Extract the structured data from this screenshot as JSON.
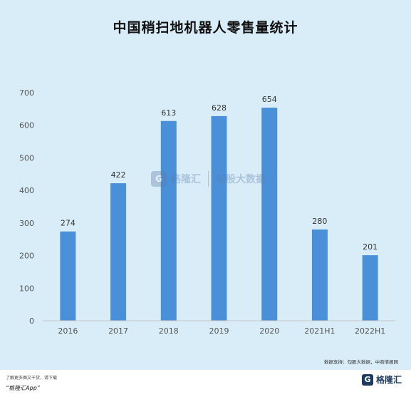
{
  "chart_data": {
    "type": "bar",
    "title": "中国稍扫地机器人零售量统计",
    "categories": [
      "2016",
      "2017",
      "2018",
      "2019",
      "2020",
      "2021H1",
      "2022H1"
    ],
    "values": [
      274,
      422,
      613,
      628,
      654,
      280,
      201
    ],
    "ylim": [
      0,
      700
    ],
    "yticks": [
      0,
      100,
      200,
      300,
      400,
      500,
      600,
      700
    ],
    "xlabel": "",
    "ylabel": "",
    "grid": false,
    "bar_color": "#4a90d9"
  },
  "source": "数据支持：勾股大数据，中商情报网",
  "watermark": {
    "logo_glyph": "G",
    "brand": "格隆汇",
    "partner": "勾股大数据"
  },
  "footer": {
    "line1": "了解更多图文干货，请下载",
    "app": "“格隆汇App”",
    "logo_glyph": "G",
    "logo_name": "格隆汇"
  },
  "colors": {
    "background": "#d9edf8",
    "bar": "#4a90d9"
  }
}
